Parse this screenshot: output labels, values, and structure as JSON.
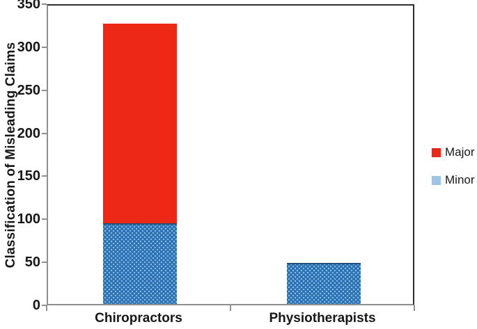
{
  "figure": {
    "background_color": "#ffffff",
    "text_color": "#171717",
    "axis_line_color": "#8f8f8f",
    "plot_border_color": "#2e2e2e"
  },
  "chart_data": {
    "type": "bar",
    "stacked": true,
    "title": "",
    "xlabel": "",
    "ylabel": "Classification of Misleading Claims",
    "ylim": [
      0,
      350
    ],
    "yticks": [
      0,
      50,
      100,
      150,
      200,
      250,
      300,
      350
    ],
    "grid": false,
    "legend_position": "right",
    "legend_order": [
      "Major",
      "Minor"
    ],
    "categories": [
      "Chiropractors",
      "Physiotherapists"
    ],
    "series": [
      {
        "name": "Minor",
        "values": [
          94,
          48
        ],
        "color": "#2E75B6",
        "dot_color": "#9DC9EE",
        "edge_color": "#1F4E79",
        "legend_color": "#9DC3E6",
        "pattern": "dots"
      },
      {
        "name": "Major",
        "values": [
          232,
          0
        ],
        "color": "#EE2817",
        "legend_color": "#E8281B",
        "pattern": "solid"
      }
    ]
  }
}
